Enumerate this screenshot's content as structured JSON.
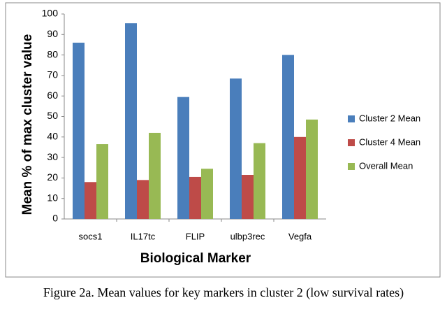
{
  "chart_data": {
    "type": "bar",
    "y_label": "Mean  % of   max cluster value",
    "x_label": "Biological Marker",
    "caption": "Figure 2a. Mean values for key markers in cluster 2 (low survival rates)",
    "categories": [
      "socs1",
      "IL17tc",
      "FLIP",
      "ulbp3rec",
      "Vegfa"
    ],
    "series": [
      {
        "name": "Cluster 2 Mean",
        "color": "#4a7ebb",
        "values": [
          86,
          95.5,
          59.5,
          68.5,
          80
        ]
      },
      {
        "name": "Cluster 4 Mean",
        "color": "#be4b48",
        "values": [
          18,
          19,
          20.5,
          21.5,
          40
        ]
      },
      {
        "name": "Overall Mean",
        "color": "#98b954",
        "values": [
          36.5,
          42,
          24.5,
          37,
          48.5
        ]
      }
    ],
    "ylim": [
      0,
      100
    ],
    "yticks": [
      0,
      10,
      20,
      30,
      40,
      50,
      60,
      70,
      80,
      90,
      100
    ],
    "grid": false,
    "legend": "right"
  }
}
